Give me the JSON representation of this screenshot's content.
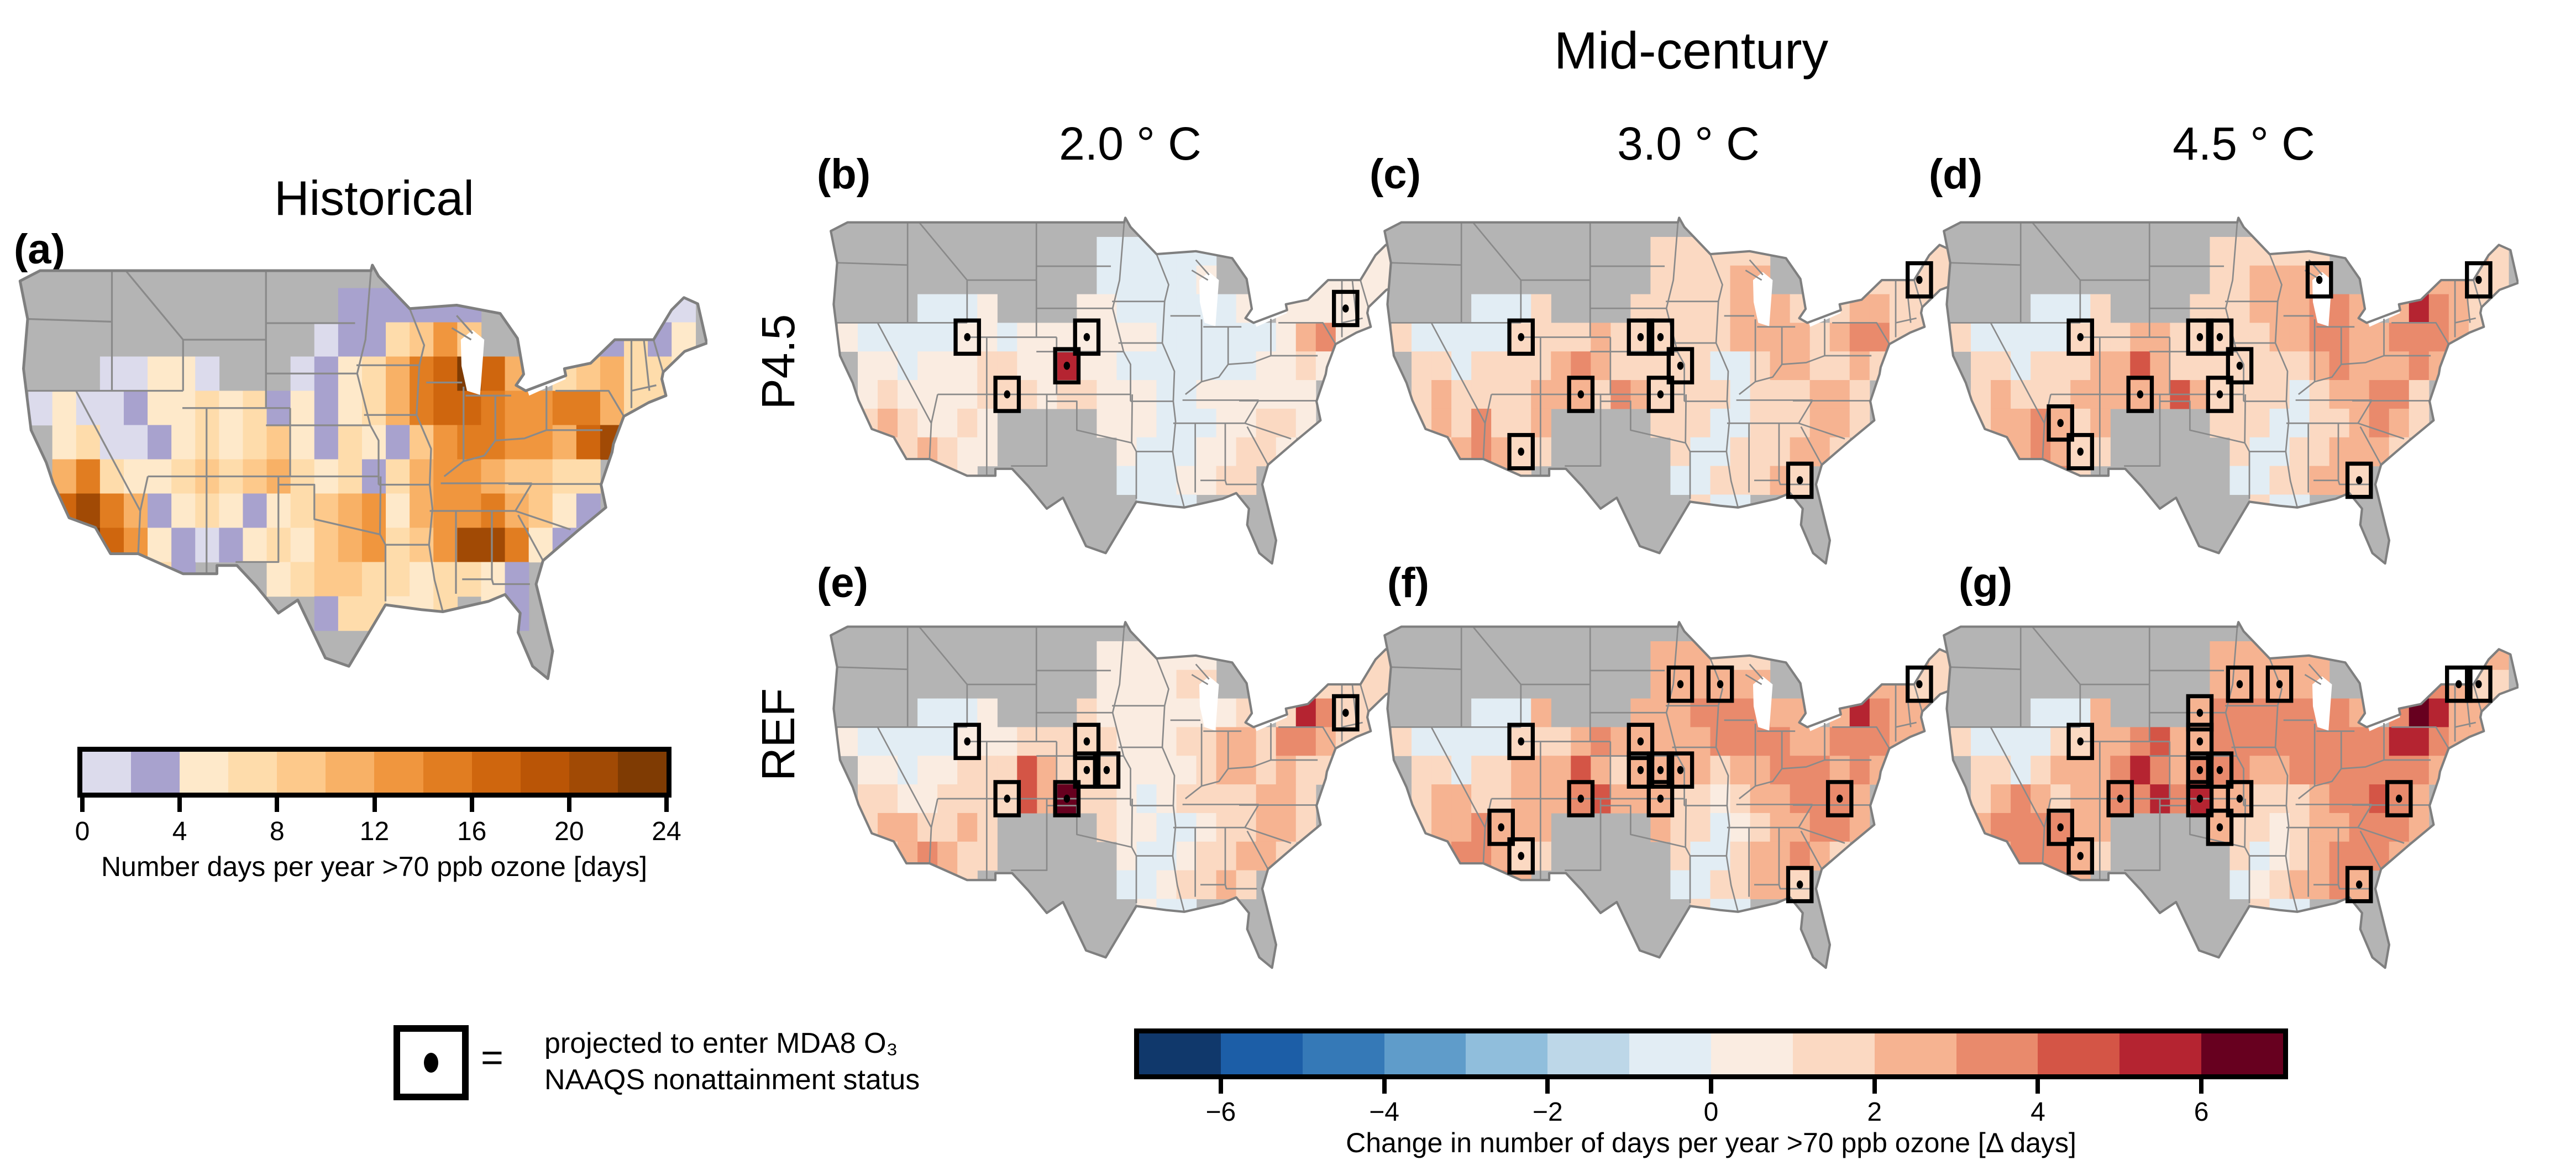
{
  "chart_data": {
    "type": "heatmap",
    "title": "Mid-century",
    "column_labels": [
      "2.0 ° C",
      "3.0 ° C",
      "4.5 ° C"
    ],
    "row_labels": [
      "P4.5",
      "REF"
    ],
    "historical_title": "Historical",
    "map_style": {
      "nodata_color": "#b4b4b4",
      "state_line_color": "#8a8a8a",
      "outline_color": "#7f7f7f",
      "lake_color": "#ffffff",
      "marker_color": "#000000"
    },
    "colorbars": {
      "historical": {
        "label": "Number days per year >70 ppb ozone [days]",
        "ticks": [
          0,
          4,
          8,
          12,
          16,
          20,
          24
        ],
        "range": [
          0,
          24
        ],
        "colors": [
          "#dcdbec",
          "#a8a2ce",
          "#fee9ca",
          "#fedcab",
          "#fdc98b",
          "#f8b166",
          "#f0963e",
          "#e17d21",
          "#cf660e",
          "#ba5506",
          "#a14a05",
          "#7f3b03"
        ]
      },
      "change": {
        "label": "Change in number of days per year >70 ppb ozone [Δ days]",
        "ticks": [
          -6,
          -4,
          -2,
          0,
          2,
          4,
          6
        ],
        "range": [
          -7,
          7
        ],
        "colors": [
          "#10386b",
          "#1c5ea7",
          "#3579b7",
          "#5f9cca",
          "#90bedc",
          "#bdd7e8",
          "#e2edf4",
          "#faece1",
          "#fbd9c2",
          "#f6b391",
          "#e98a6c",
          "#d45546",
          "#b52431",
          "#67001f"
        ]
      }
    },
    "legend": {
      "symbol": "square-with-center-dot",
      "equals_sign": "=",
      "text_line1": "projected to enter MDA8 O₃",
      "text_line2": "NAAQS nonattainment status"
    },
    "panels": [
      {
        "id": "a",
        "letter": "(a)",
        "scenario": "Historical",
        "warming": "",
        "palette": "historical",
        "markers": [],
        "grid": [
          "..............................",
          "..............111111.......00.",
          ".............0113464....11312.",
          "....00220...0123578b85.345332.",
          ".0200122323121235788766775332.",
          "..23001232342132146776658a4...",
          "..57322343453231356654433.....",
          "..8a751232123456256675421.....",
          "..7b862101232456346aa721......",
          "....3531...23443323321........",
          ".............133223.21........",
          "..............................",
          ".............................."
        ]
      },
      {
        "id": "b",
        "letter": "(b)",
        "scenario": "P4.5",
        "warming": "2.0 ° C",
        "palette": "change",
        "markers": [
          [
            7,
            4
          ],
          [
            13,
            4
          ],
          [
            12,
            5
          ],
          [
            9,
            6
          ],
          [
            26,
            3
          ]
        ],
        "grid": [
          "..............................",
          "..............666666.......77.",
          "..............666667....67777.",
          ".....6667....776666667.777777.",
          ".766666776777777766666679a777.",
          "..7767778877c77666666677877...",
          "..78777788878877766777777.....",
          "..8987787.....77766677887.....",
          "..7889877......766677887......",
          ".....887.......6667788........",
          "................666...........",
          "..............................",
          ".............................."
        ]
      },
      {
        "id": "c",
        "letter": "(c)",
        "scenario": "P4.5",
        "warming": "3.0 ° C",
        "palette": "change",
        "markers": [
          [
            27,
            2
          ],
          [
            7,
            4
          ],
          [
            13,
            4
          ],
          [
            14,
            4
          ],
          [
            15,
            5
          ],
          [
            10,
            6
          ],
          [
            14,
            6
          ],
          [
            7,
            8
          ],
          [
            21,
            9
          ]
        ],
        "grid": [
          "..............................",
          "..............888888.......88.",
          "..............888899....88888.",
          ".....6668....888889998.899888.",
          ".86666688889888888999989aa888.",
          "..88688889a9888886689988988...",
          "..8988889998a988886888998.....",
          "..898a889.....88866888998.....",
          "..889a988......866888998......",
          ".....998.......6688898........",
          "................866...........",
          "..............................",
          ".............................."
        ]
      },
      {
        "id": "d",
        "letter": "(d)",
        "scenario": "P4.5",
        "warming": "4.5 ° C",
        "palette": "change",
        "markers": [
          [
            19,
            2
          ],
          [
            27,
            2
          ],
          [
            7,
            4
          ],
          [
            13,
            4
          ],
          [
            14,
            4
          ],
          [
            15,
            5
          ],
          [
            10,
            6
          ],
          [
            14,
            6
          ],
          [
            6,
            7
          ],
          [
            7,
            8
          ],
          [
            21,
            9
          ]
        ],
        "grid": [
          "..............................",
          "..............888888.......98.",
          "..............889999....99988.",
          ".....6668....888999aa9.9ca988.",
          ".866666888998888899aa99aaa988.",
          "..88688899b988888889a999a98...",
          "..8988899999b988886899aa8.....",
          "..899a989.....88866889a98.....",
          "..899a988......866889998......",
          ".....aa8.......6688998........",
          "................866...........",
          "..............................",
          ".............................."
        ]
      },
      {
        "id": "e",
        "letter": "(e)",
        "scenario": "REF",
        "warming": "2.0 ° C",
        "palette": "change",
        "markers": [
          [
            26,
            3
          ],
          [
            7,
            4
          ],
          [
            13,
            4
          ],
          [
            13,
            5
          ],
          [
            14,
            5
          ],
          [
            12,
            6
          ],
          [
            9,
            6
          ]
        ],
        "grid": [
          "..............................",
          "..............777777.......88.",
          "..............777788....88888.",
          ".....6667....877777778.8ca888.",
          ".7666667778888877788998aa9888.",
          "..77677888b9888777789989888...",
          "..88778888b9d887678888998.....",
          "..8998898.....87766788998.....",
          "..889a988......766788998......",
          ".....998.......6678898........",
          "................766...........",
          "..............................",
          ".............................."
        ]
      },
      {
        "id": "f",
        "letter": "(f)",
        "scenario": "REF",
        "warming": "3.0 ° C",
        "palette": "change",
        "markers": [
          [
            15,
            2
          ],
          [
            17,
            2
          ],
          [
            27,
            2
          ],
          [
            7,
            4
          ],
          [
            13,
            4
          ],
          [
            13,
            5
          ],
          [
            14,
            5
          ],
          [
            15,
            5
          ],
          [
            10,
            6
          ],
          [
            14,
            6
          ],
          [
            23,
            6
          ],
          [
            6,
            7
          ],
          [
            7,
            8
          ],
          [
            21,
            9
          ]
        ],
        "grid": [
          "..............................",
          "..............999888.......98.",
          "..............999999....99988.",
          ".....6669....999aaaa99.9ca998.",
          ".8666668889a99999aaaa99aaa998.",
          "..88688999b989999899aaa9a98...",
          "..89988999ab999887899aaa9.....",
          "..899a999.....98867899aa9.....",
          "..89aa988......866899a98......",
          ".....aa9.......6688998........",
          "................866...........",
          "..............................",
          ".............................."
        ]
      },
      {
        "id": "g",
        "letter": "(g)",
        "scenario": "REF",
        "warming": "4.5 ° C",
        "palette": "change",
        "markers": [
          [
            15,
            2
          ],
          [
            17,
            2
          ],
          [
            26,
            2
          ],
          [
            27,
            2
          ],
          [
            13,
            3
          ],
          [
            7,
            4
          ],
          [
            13,
            4
          ],
          [
            13,
            5
          ],
          [
            14,
            5
          ],
          [
            9,
            6
          ],
          [
            13,
            6
          ],
          [
            15,
            6
          ],
          [
            23,
            6
          ],
          [
            14,
            7
          ],
          [
            6,
            7
          ],
          [
            7,
            8
          ],
          [
            21,
            9
          ]
        ],
        "grid": [
          "..............................",
          "..............999999.......99.",
          "..............999999....aa988.",
          ".....6669....9aaaaaaa9.adc999.",
          ".866668899ab99aaaaaaaaacca999.",
          "..8868999aca9aaa99aaaaaaa98...",
          "..89a9899aacac998889aaba9.....",
          "..9aaaa99.....9887899aaa9.....",
          "..89aaa98......86789aaa9......",
          ".....aa9.......67899a9........",
          "................866...........",
          "..............................",
          ".............................."
        ]
      }
    ]
  }
}
